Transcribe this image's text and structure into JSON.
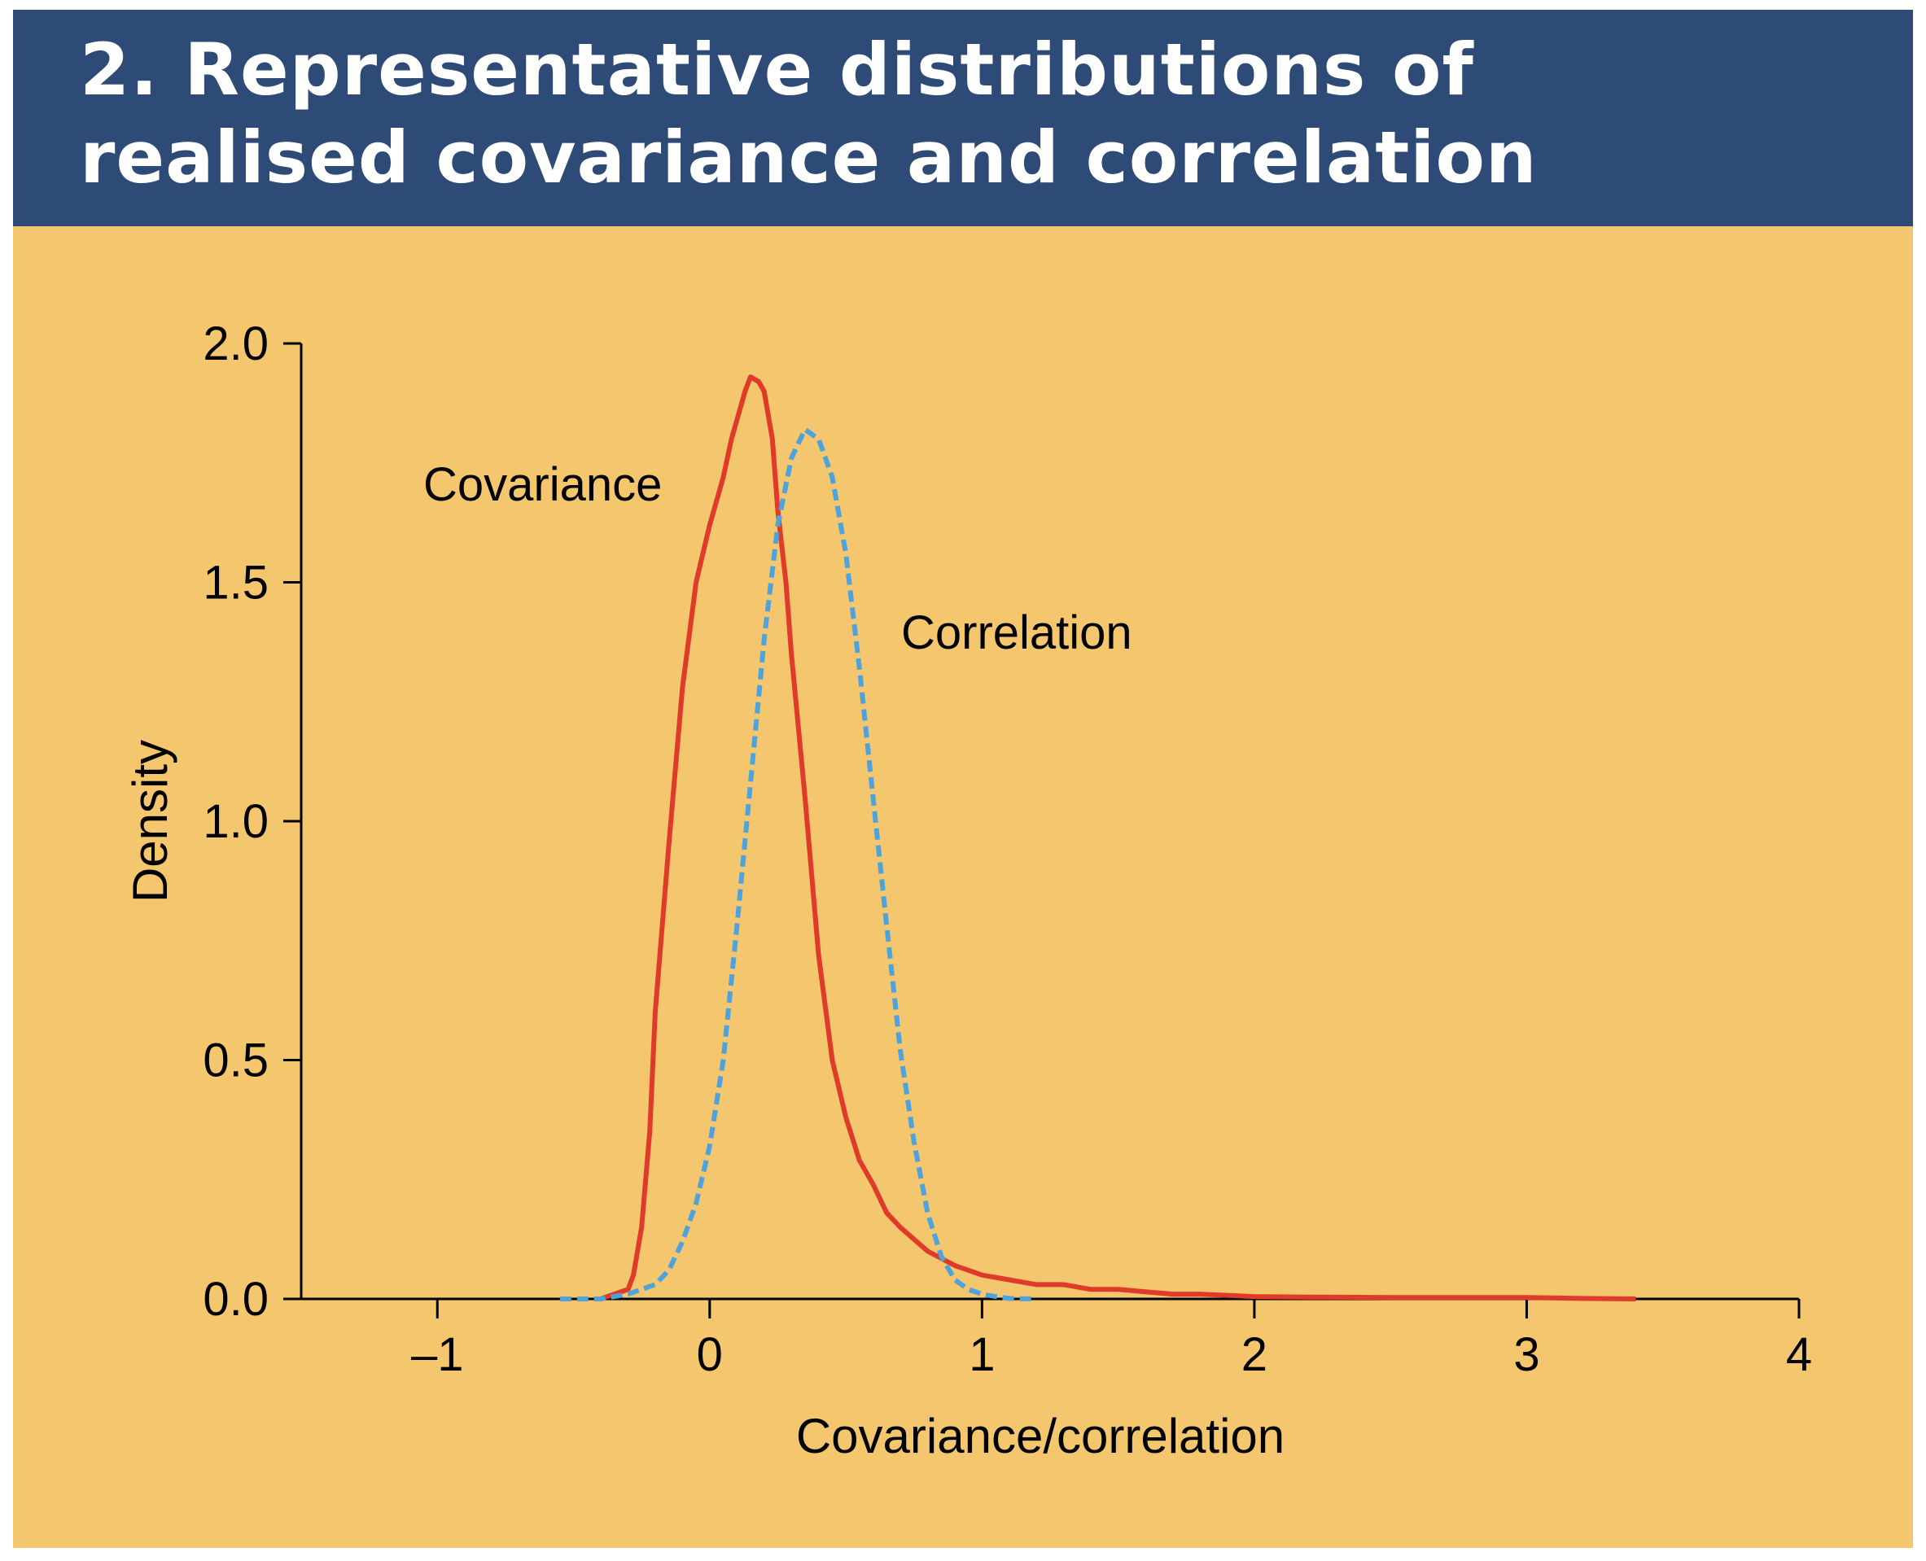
{
  "chart_data": {
    "type": "line",
    "title_line1": "2. Representative distributions of",
    "title_line2": "realised covariance and correlation",
    "xlabel": "Covariance/correlation",
    "ylabel": "Density",
    "xlim": [
      -1.5,
      4
    ],
    "ylim": [
      0,
      2
    ],
    "xticks": [
      -1,
      0,
      1,
      2,
      3,
      4
    ],
    "xtick_labels": [
      "–1",
      "0",
      "1",
      "2",
      "3",
      "4"
    ],
    "yticks": [
      0,
      0.5,
      1,
      1.5,
      2
    ],
    "ytick_labels": [
      "0.0",
      "0.5",
      "1.0",
      "1.5",
      "2.0"
    ],
    "grid": false,
    "colors": {
      "header": "#2e4a76",
      "background": "#f4c66d",
      "covariance": "#e03a2a",
      "correlation": "#4ea3dc"
    },
    "series": [
      {
        "name": "Covariance",
        "style": "solid",
        "x": [
          -0.4,
          -0.35,
          -0.3,
          -0.28,
          -0.25,
          -0.22,
          -0.2,
          -0.15,
          -0.1,
          -0.05,
          0.0,
          0.05,
          0.08,
          0.1,
          0.13,
          0.15,
          0.18,
          0.2,
          0.23,
          0.25,
          0.28,
          0.3,
          0.35,
          0.4,
          0.45,
          0.5,
          0.55,
          0.6,
          0.65,
          0.7,
          0.8,
          0.9,
          1.0,
          1.1,
          1.2,
          1.3,
          1.4,
          1.5,
          1.6,
          1.7,
          1.8,
          2.0,
          2.2,
          2.5,
          2.8,
          3.0,
          3.1,
          3.2,
          3.4
        ],
        "y": [
          0.0,
          0.01,
          0.02,
          0.05,
          0.15,
          0.35,
          0.6,
          0.95,
          1.28,
          1.5,
          1.62,
          1.72,
          1.8,
          1.84,
          1.9,
          1.93,
          1.92,
          1.9,
          1.8,
          1.65,
          1.5,
          1.35,
          1.05,
          0.72,
          0.5,
          0.38,
          0.29,
          0.24,
          0.18,
          0.15,
          0.1,
          0.07,
          0.05,
          0.04,
          0.03,
          0.03,
          0.02,
          0.02,
          0.015,
          0.01,
          0.01,
          0.005,
          0.004,
          0.003,
          0.003,
          0.003,
          0.002,
          0.001,
          0.0
        ]
      },
      {
        "name": "Correlation",
        "style": "dashed",
        "x": [
          -0.55,
          -0.4,
          -0.3,
          -0.2,
          -0.15,
          -0.1,
          -0.05,
          0.0,
          0.05,
          0.1,
          0.15,
          0.2,
          0.25,
          0.3,
          0.35,
          0.4,
          0.45,
          0.5,
          0.55,
          0.6,
          0.65,
          0.7,
          0.75,
          0.8,
          0.85,
          0.9,
          0.95,
          1.0,
          1.05,
          1.1,
          1.2
        ],
        "y": [
          0.0,
          0.0,
          0.01,
          0.03,
          0.06,
          0.12,
          0.2,
          0.32,
          0.5,
          0.78,
          1.08,
          1.38,
          1.62,
          1.76,
          1.82,
          1.8,
          1.72,
          1.56,
          1.32,
          1.05,
          0.78,
          0.52,
          0.33,
          0.18,
          0.09,
          0.04,
          0.02,
          0.01,
          0.005,
          0.001,
          0.0
        ]
      }
    ],
    "labels": {
      "covariance": "Covariance",
      "correlation": "Correlation"
    }
  }
}
